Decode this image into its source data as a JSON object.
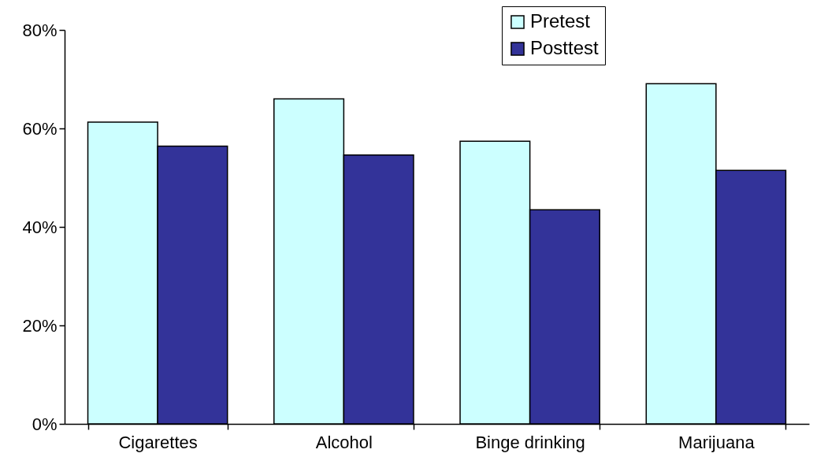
{
  "chart_data": {
    "type": "bar",
    "categories": [
      "Cigarettes",
      "Alcohol",
      "Binge drinking",
      "Marijuana"
    ],
    "series": [
      {
        "name": "Pretest",
        "color": "#ccffff",
        "values": [
          61.3,
          66.0,
          57.4,
          69.1
        ]
      },
      {
        "name": "Posttest",
        "color": "#333399",
        "values": [
          56.4,
          54.6,
          43.5,
          51.5
        ]
      }
    ],
    "ylim": [
      0,
      80
    ],
    "yticks": [
      {
        "value": 0,
        "label": "0%"
      },
      {
        "value": 20,
        "label": "20%"
      },
      {
        "value": 40,
        "label": "40%"
      },
      {
        "value": 60,
        "label": "60%"
      },
      {
        "value": 80,
        "label": "80%"
      }
    ],
    "grid": false,
    "legend": "top"
  }
}
